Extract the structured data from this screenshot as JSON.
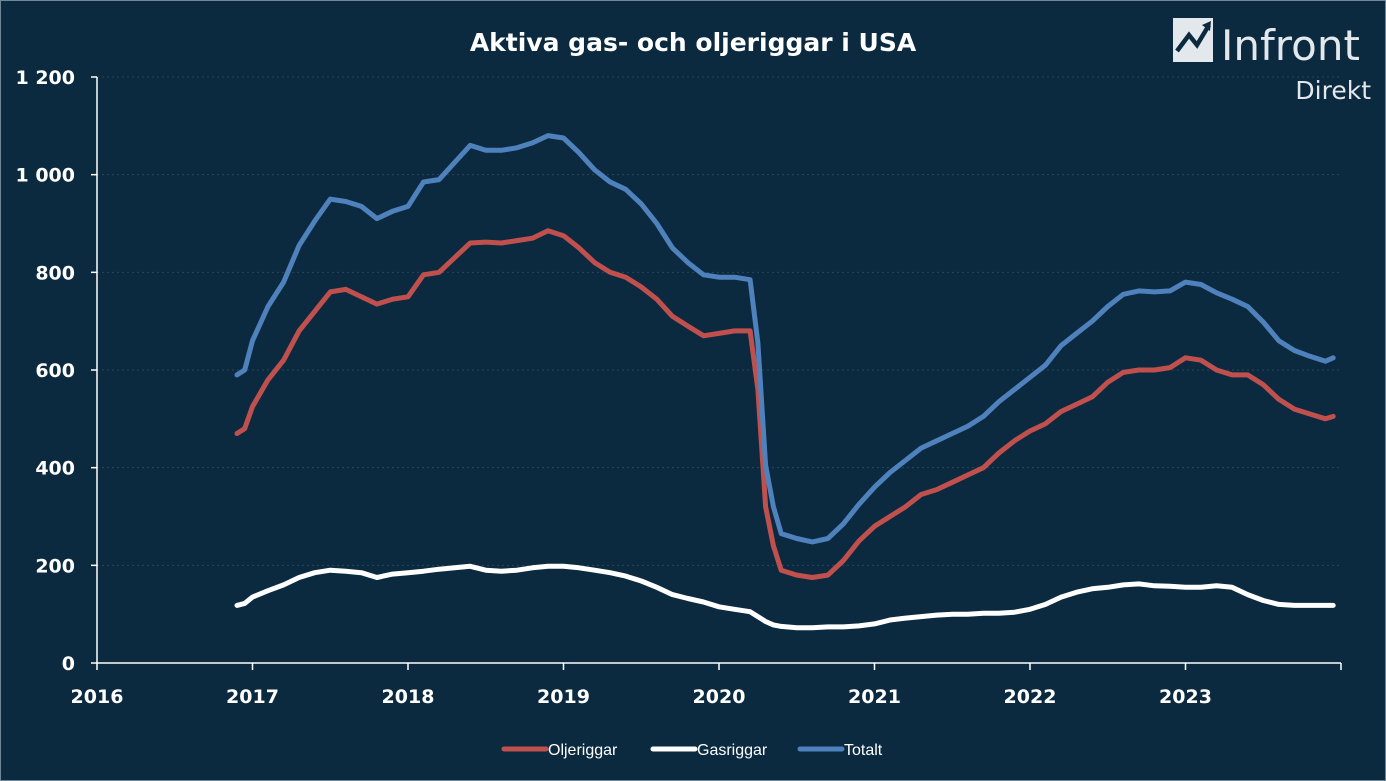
{
  "chart_data": {
    "type": "line",
    "title": "Aktiva gas- och oljeriggar i USA",
    "xlabel": "",
    "ylabel": "",
    "xlim": [
      2016,
      2024
    ],
    "ylim": [
      0,
      1200
    ],
    "x_ticks": [
      "2016",
      "2017",
      "2018",
      "2019",
      "2020",
      "2021",
      "2022",
      "2023"
    ],
    "y_ticks": [
      "0",
      "200",
      "400",
      "600",
      "800",
      "1 000",
      "1 200"
    ],
    "legend_position": "bottom",
    "grid": true,
    "x": [
      2016.9,
      2016.95,
      2017.0,
      2017.1,
      2017.2,
      2017.3,
      2017.4,
      2017.5,
      2017.6,
      2017.7,
      2017.8,
      2017.9,
      2018.0,
      2018.1,
      2018.2,
      2018.3,
      2018.4,
      2018.5,
      2018.6,
      2018.7,
      2018.8,
      2018.9,
      2019.0,
      2019.1,
      2019.2,
      2019.3,
      2019.4,
      2019.5,
      2019.6,
      2019.7,
      2019.8,
      2019.9,
      2020.0,
      2020.1,
      2020.2,
      2020.25,
      2020.3,
      2020.35,
      2020.4,
      2020.5,
      2020.6,
      2020.7,
      2020.8,
      2020.9,
      2021.0,
      2021.1,
      2021.2,
      2021.3,
      2021.4,
      2021.5,
      2021.6,
      2021.7,
      2021.8,
      2021.9,
      2022.0,
      2022.1,
      2022.2,
      2022.3,
      2022.4,
      2022.5,
      2022.6,
      2022.7,
      2022.8,
      2022.9,
      2023.0,
      2023.1,
      2023.2,
      2023.3,
      2023.4,
      2023.5,
      2023.6,
      2023.7,
      2023.8,
      2023.9,
      2023.95
    ],
    "series": [
      {
        "name": "Oljeriggar",
        "color": "#c0504d",
        "values": [
          470,
          480,
          525,
          580,
          620,
          680,
          720,
          760,
          765,
          750,
          735,
          745,
          750,
          795,
          800,
          830,
          860,
          862,
          860,
          865,
          870,
          885,
          875,
          850,
          820,
          800,
          790,
          770,
          745,
          710,
          690,
          670,
          675,
          680,
          680,
          560,
          320,
          240,
          190,
          180,
          175,
          180,
          210,
          250,
          280,
          300,
          320,
          345,
          355,
          370,
          385,
          400,
          430,
          455,
          475,
          490,
          515,
          530,
          545,
          575,
          595,
          600,
          600,
          605,
          625,
          620,
          600,
          590,
          590,
          570,
          540,
          520,
          510,
          500,
          505
        ]
      },
      {
        "name": "Gasriggar",
        "color": "#ffffff",
        "values": [
          118,
          122,
          135,
          148,
          160,
          175,
          185,
          190,
          188,
          185,
          175,
          182,
          185,
          188,
          192,
          195,
          198,
          190,
          188,
          190,
          195,
          198,
          198,
          195,
          190,
          185,
          178,
          168,
          155,
          140,
          132,
          125,
          115,
          110,
          105,
          95,
          85,
          78,
          75,
          72,
          72,
          74,
          74,
          76,
          80,
          88,
          92,
          95,
          98,
          100,
          100,
          102,
          102,
          104,
          110,
          120,
          135,
          145,
          152,
          155,
          160,
          162,
          158,
          157,
          155,
          155,
          158,
          155,
          140,
          128,
          120,
          118,
          118,
          118,
          118
        ]
      },
      {
        "name": "Totalt",
        "color": "#4f81bd",
        "values": [
          590,
          600,
          660,
          730,
          780,
          855,
          905,
          950,
          945,
          935,
          910,
          925,
          935,
          985,
          990,
          1025,
          1060,
          1050,
          1050,
          1055,
          1065,
          1080,
          1075,
          1045,
          1010,
          985,
          970,
          940,
          900,
          850,
          820,
          795,
          790,
          790,
          785,
          655,
          405,
          320,
          265,
          255,
          248,
          255,
          285,
          325,
          360,
          390,
          415,
          440,
          455,
          470,
          485,
          505,
          535,
          560,
          585,
          610,
          650,
          675,
          700,
          730,
          755,
          762,
          760,
          762,
          780,
          775,
          758,
          745,
          730,
          698,
          660,
          640,
          628,
          618,
          625
        ]
      }
    ]
  },
  "brand": {
    "name": "Infront",
    "sub": "Direkt",
    "logo_icon": "chart-arrow-logo-icon"
  }
}
